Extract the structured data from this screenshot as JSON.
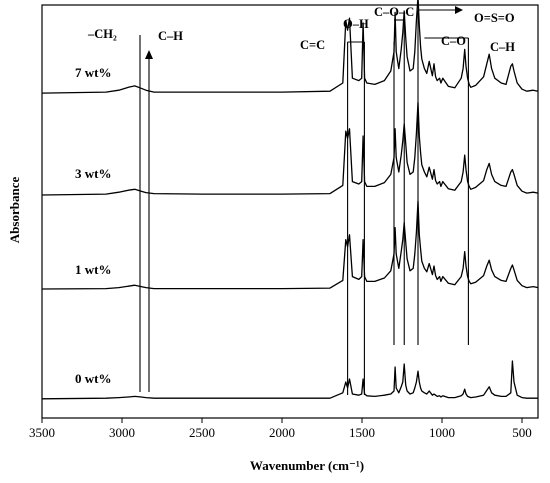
{
  "chart_data": {
    "type": "line",
    "title": "",
    "xlabel": "Wavenumber (cm⁻¹)",
    "ylabel": "Absorbance",
    "xlim": [
      3500,
      400
    ],
    "x_reversed": true,
    "x_ticks": [
      "3500",
      "3000",
      "2500",
      "2000",
      "1500",
      "1000",
      "500"
    ],
    "grid": false,
    "series": [
      {
        "name": "7 wt%",
        "x": [
          3500,
          3100,
          3020,
          2960,
          2920,
          2880,
          2850,
          2800,
          2500,
          2000,
          1700,
          1620,
          1601,
          1590,
          1578,
          1560,
          1520,
          1502,
          1493,
          1484,
          1470,
          1420,
          1360,
          1320,
          1300,
          1293,
          1286,
          1270,
          1255,
          1245,
          1236,
          1227,
          1218,
          1200,
          1180,
          1170,
          1160,
          1150,
          1142,
          1134,
          1126,
          1110,
          1095,
          1080,
          1060,
          1050,
          1040,
          1030,
          1015,
          1007,
          995,
          960,
          920,
          880,
          868,
          858,
          850,
          840,
          830,
          820,
          790,
          740,
          720,
          705,
          690,
          670,
          630,
          600,
          570,
          560,
          550,
          530,
          500,
          470,
          430,
          400
        ],
        "y": [
          0.04,
          0.06,
          0.1,
          0.16,
          0.19,
          0.14,
          0.1,
          0.06,
          0.06,
          0.06,
          0.08,
          0.25,
          1.55,
          1.35,
          1.6,
          0.35,
          0.3,
          0.35,
          1.5,
          0.35,
          0.25,
          0.22,
          0.3,
          0.5,
          0.9,
          1.72,
          0.9,
          0.55,
          0.95,
          1.3,
          1.75,
          1.2,
          0.8,
          0.5,
          0.55,
          0.9,
          1.55,
          2.05,
          1.45,
          1.0,
          0.75,
          0.55,
          0.45,
          0.7,
          0.4,
          0.65,
          0.38,
          0.3,
          0.35,
          0.25,
          0.35,
          0.18,
          0.15,
          0.35,
          0.55,
          0.95,
          0.6,
          0.35,
          0.22,
          0.16,
          0.2,
          0.38,
          0.65,
          0.85,
          0.55,
          0.35,
          0.25,
          0.22,
          0.6,
          0.65,
          0.5,
          0.25,
          0.12,
          0.08,
          0.1,
          0.08
        ]
      },
      {
        "name": "3 wt%",
        "x": [
          3500,
          3100,
          3020,
          2960,
          2920,
          2880,
          2850,
          2800,
          2500,
          2000,
          1700,
          1620,
          1601,
          1590,
          1578,
          1560,
          1520,
          1502,
          1493,
          1484,
          1470,
          1420,
          1360,
          1320,
          1300,
          1293,
          1286,
          1270,
          1255,
          1245,
          1236,
          1227,
          1218,
          1200,
          1180,
          1170,
          1160,
          1150,
          1142,
          1134,
          1126,
          1110,
          1095,
          1080,
          1060,
          1050,
          1040,
          1030,
          1015,
          1007,
          995,
          960,
          920,
          880,
          868,
          858,
          850,
          840,
          830,
          820,
          790,
          740,
          720,
          705,
          690,
          670,
          630,
          600,
          570,
          560,
          550,
          530,
          500,
          470,
          430,
          400
        ],
        "y": [
          0.02,
          0.04,
          0.08,
          0.12,
          0.14,
          0.1,
          0.07,
          0.05,
          0.04,
          0.04,
          0.05,
          0.22,
          1.35,
          1.2,
          1.4,
          0.3,
          0.25,
          0.3,
          1.25,
          0.3,
          0.2,
          0.2,
          0.28,
          0.45,
          0.8,
          1.4,
          0.8,
          0.5,
          0.85,
          1.15,
          1.5,
          1.1,
          0.7,
          0.45,
          0.5,
          0.8,
          1.3,
          1.95,
          1.25,
          0.9,
          0.65,
          0.5,
          0.4,
          0.6,
          0.35,
          0.55,
          0.32,
          0.25,
          0.3,
          0.2,
          0.3,
          0.15,
          0.12,
          0.3,
          0.5,
          0.85,
          0.55,
          0.3,
          0.2,
          0.14,
          0.18,
          0.32,
          0.55,
          0.68,
          0.45,
          0.3,
          0.22,
          0.2,
          0.5,
          0.55,
          0.45,
          0.22,
          0.1,
          0.06,
          0.08,
          0.06
        ]
      },
      {
        "name": "1 wt%",
        "x": [
          3500,
          3100,
          3020,
          2960,
          2920,
          2880,
          2850,
          2800,
          2500,
          2000,
          1700,
          1620,
          1601,
          1590,
          1578,
          1560,
          1520,
          1502,
          1493,
          1484,
          1470,
          1420,
          1360,
          1320,
          1300,
          1293,
          1286,
          1270,
          1255,
          1245,
          1236,
          1227,
          1218,
          1200,
          1180,
          1170,
          1160,
          1150,
          1142,
          1134,
          1126,
          1110,
          1095,
          1080,
          1060,
          1050,
          1040,
          1030,
          1015,
          1007,
          995,
          960,
          920,
          880,
          868,
          858,
          850,
          840,
          830,
          820,
          790,
          740,
          720,
          705,
          690,
          670,
          630,
          600,
          570,
          560,
          550,
          530,
          500,
          470,
          430,
          400
        ],
        "y": [
          0.02,
          0.03,
          0.05,
          0.08,
          0.1,
          0.07,
          0.05,
          0.03,
          0.03,
          0.03,
          0.04,
          0.2,
          1.05,
          0.9,
          1.15,
          0.28,
          0.22,
          0.28,
          1.05,
          0.28,
          0.18,
          0.18,
          0.25,
          0.4,
          0.75,
          1.3,
          0.75,
          0.45,
          0.8,
          1.05,
          1.4,
          1.0,
          0.65,
          0.4,
          0.45,
          0.75,
          1.2,
          1.85,
          1.15,
          0.85,
          0.6,
          0.45,
          0.38,
          0.55,
          0.32,
          0.5,
          0.3,
          0.22,
          0.28,
          0.18,
          0.28,
          0.14,
          0.11,
          0.28,
          0.45,
          0.8,
          0.5,
          0.28,
          0.18,
          0.13,
          0.16,
          0.3,
          0.5,
          0.62,
          0.42,
          0.28,
          0.2,
          0.18,
          0.45,
          0.52,
          0.42,
          0.2,
          0.09,
          0.05,
          0.07,
          0.05
        ]
      },
      {
        "name": "0 wt%",
        "x": [
          3500,
          3100,
          3020,
          2960,
          2920,
          2880,
          2850,
          2800,
          2500,
          2000,
          1700,
          1620,
          1601,
          1590,
          1578,
          1560,
          1520,
          1502,
          1493,
          1484,
          1470,
          1420,
          1360,
          1320,
          1300,
          1293,
          1286,
          1270,
          1255,
          1245,
          1236,
          1227,
          1218,
          1200,
          1180,
          1170,
          1160,
          1150,
          1142,
          1134,
          1126,
          1110,
          1095,
          1080,
          1060,
          1050,
          1040,
          1030,
          1015,
          1007,
          995,
          960,
          920,
          880,
          868,
          858,
          850,
          840,
          830,
          820,
          790,
          740,
          720,
          705,
          690,
          670,
          630,
          600,
          570,
          560,
          550,
          530,
          500,
          470,
          430,
          400
        ],
        "y": [
          0.02,
          0.03,
          0.04,
          0.05,
          0.06,
          0.05,
          0.04,
          0.03,
          0.03,
          0.03,
          0.03,
          0.12,
          0.3,
          0.2,
          0.35,
          0.1,
          0.08,
          0.1,
          0.35,
          0.1,
          0.07,
          0.06,
          0.08,
          0.1,
          0.15,
          0.55,
          0.2,
          0.12,
          0.22,
          0.3,
          0.6,
          0.25,
          0.15,
          0.1,
          0.12,
          0.2,
          0.3,
          0.48,
          0.3,
          0.2,
          0.15,
          0.12,
          0.1,
          0.15,
          0.08,
          0.1,
          0.08,
          0.06,
          0.07,
          0.05,
          0.07,
          0.04,
          0.04,
          0.07,
          0.1,
          0.18,
          0.1,
          0.06,
          0.05,
          0.04,
          0.05,
          0.08,
          0.16,
          0.22,
          0.12,
          0.08,
          0.06,
          0.06,
          0.12,
          0.65,
          0.3,
          0.08,
          0.04,
          0.03,
          0.03,
          0.03
        ]
      }
    ],
    "annotations": [
      {
        "label": "–CH₂",
        "x": 2920
      },
      {
        "label": "C–H",
        "x": 2880
      },
      {
        "label": "C=C",
        "x": 1590
      },
      {
        "label": "O–H",
        "x": 1493
      },
      {
        "label": "C–O–C",
        "x": 1236
      },
      {
        "label": "O=S=O",
        "x": 1150
      },
      {
        "label": "C–O",
        "x": 858
      },
      {
        "label": "C–H",
        "x": 858
      }
    ]
  }
}
